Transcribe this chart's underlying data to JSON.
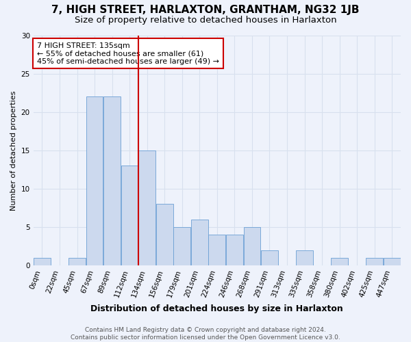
{
  "title1": "7, HIGH STREET, HARLAXTON, GRANTHAM, NG32 1JB",
  "title2": "Size of property relative to detached houses in Harlaxton",
  "xlabel": "Distribution of detached houses by size in Harlaxton",
  "ylabel": "Number of detached properties",
  "bin_labels": [
    "0sqm",
    "22sqm",
    "45sqm",
    "67sqm",
    "89sqm",
    "112sqm",
    "134sqm",
    "156sqm",
    "179sqm",
    "201sqm",
    "224sqm",
    "246sqm",
    "268sqm",
    "291sqm",
    "313sqm",
    "335sqm",
    "358sqm",
    "380sqm",
    "402sqm",
    "425sqm",
    "447sqm"
  ],
  "bar_heights": [
    1,
    0,
    1,
    22,
    22,
    13,
    15,
    8,
    5,
    6,
    4,
    4,
    5,
    2,
    0,
    2,
    0,
    1,
    0,
    1,
    1
  ],
  "bar_color": "#ccd9ee",
  "bar_edge_color": "#6b9fd4",
  "grid_color": "#d8e0ee",
  "reference_line_x": 5.5,
  "reference_line_color": "#cc0000",
  "annotation_text": "7 HIGH STREET: 135sqm\n← 55% of detached houses are smaller (61)\n45% of semi-detached houses are larger (49) →",
  "annotation_box_color": "#ffffff",
  "annotation_box_edge_color": "#cc0000",
  "ylim": [
    0,
    30
  ],
  "yticks": [
    0,
    5,
    10,
    15,
    20,
    25,
    30
  ],
  "footer1": "Contains HM Land Registry data © Crown copyright and database right 2024.",
  "footer2": "Contains public sector information licensed under the Open Government Licence v3.0.",
  "bg_color": "#eef2fb",
  "title1_fontsize": 11,
  "title2_fontsize": 9.5,
  "xlabel_fontsize": 9,
  "ylabel_fontsize": 8,
  "tick_fontsize": 7.5,
  "annotation_fontsize": 8,
  "footer_fontsize": 6.5
}
